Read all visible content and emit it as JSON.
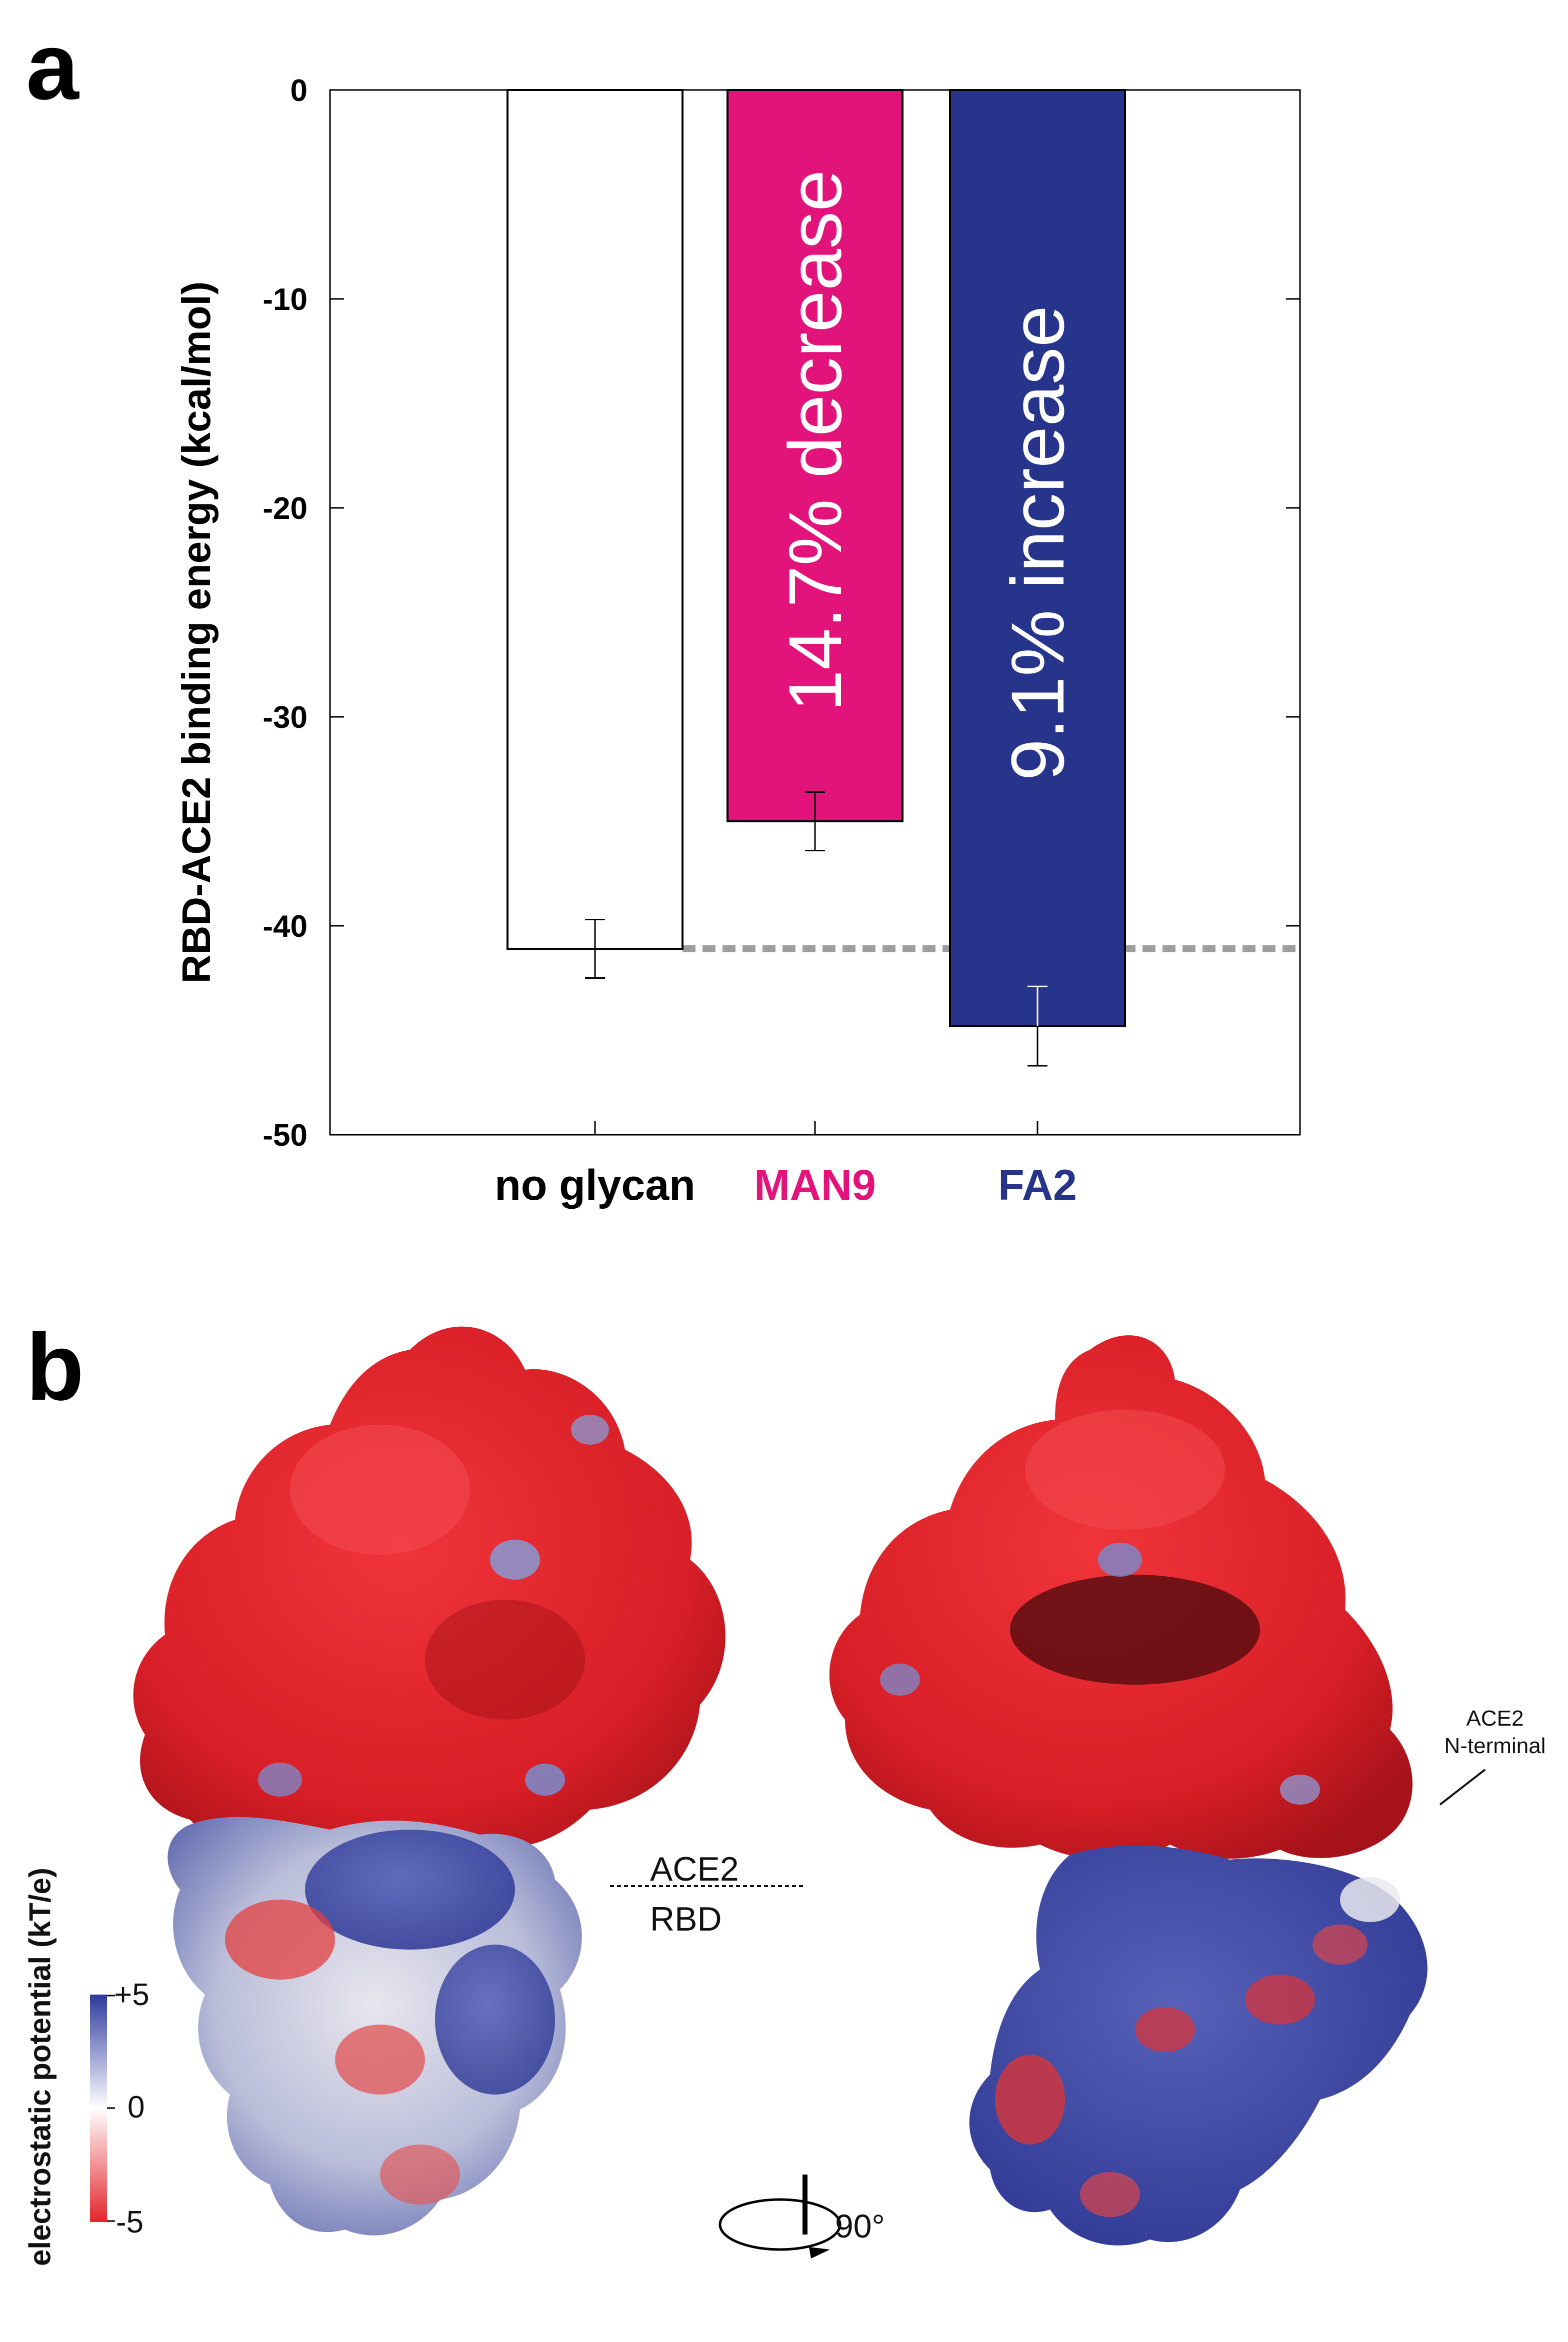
{
  "panels": {
    "a": "a",
    "b": "b"
  },
  "colors": {
    "man9": "#E2137A",
    "fa2": "#27348B",
    "reference_line": "#9E9E9E"
  },
  "chart_data": {
    "type": "bar",
    "categories": [
      "no glycan",
      "MAN9",
      "FA2"
    ],
    "category_colors": [
      "#000000",
      "#E2137A",
      "#27348B"
    ],
    "values": [
      -41.1,
      -35.0,
      -44.8
    ],
    "errors": [
      1.4,
      1.4,
      1.9
    ],
    "bar_fill": [
      "#FFFFFF",
      "#E2137A",
      "#27348B"
    ],
    "bar_labels": [
      "",
      "14.7% decrease",
      "9.1% increase"
    ],
    "ylabel": "RBD-ACE2 binding energy (kcal/mol)",
    "ylim": [
      -50,
      0
    ],
    "yticks": [
      0,
      -10,
      -20,
      -30,
      -40,
      -50
    ],
    "reference_line": -41.1,
    "grid": false
  },
  "structure_panel": {
    "label_ace2": "ACE2",
    "label_rbd": "RBD",
    "label_nterm_line1": "ACE2",
    "label_nterm_line2": "N-terminal",
    "rotation_label": "90°",
    "colorbar": {
      "title": "electrostatic potential (kT/e)",
      "max_label": "+5",
      "mid_label": "0",
      "min_label": "-5",
      "colors": [
        "#E3242B",
        "#FFFFFF",
        "#2E3A9E"
      ]
    }
  }
}
